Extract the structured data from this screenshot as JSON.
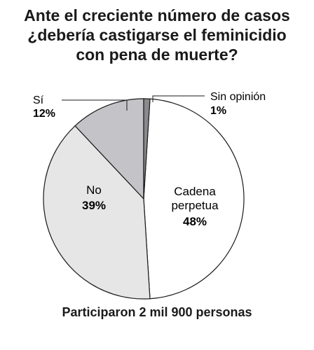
{
  "chart_data": {
    "type": "pie",
    "title_lines": [
      "Ante el creciente número de casos",
      "¿debería castigarse el feminicidio",
      "con pena de muerte?"
    ],
    "slices": [
      {
        "label_lines": [
          "Cadena",
          "perpetua"
        ],
        "value": 48,
        "value_label": "48%",
        "color": "#ffffff"
      },
      {
        "label_lines": [
          "No"
        ],
        "value": 39,
        "value_label": "39%",
        "color": "#e6e6e6"
      },
      {
        "label_lines": [
          "Sí"
        ],
        "value": 12,
        "value_label": "12%",
        "color": "#c4c4c8"
      },
      {
        "label_lines": [
          "Sin opinión"
        ],
        "value": 1,
        "value_label": "1%",
        "color": "#8a8a8e"
      }
    ],
    "footnote": "Participaron 2 mil 900 personas"
  }
}
